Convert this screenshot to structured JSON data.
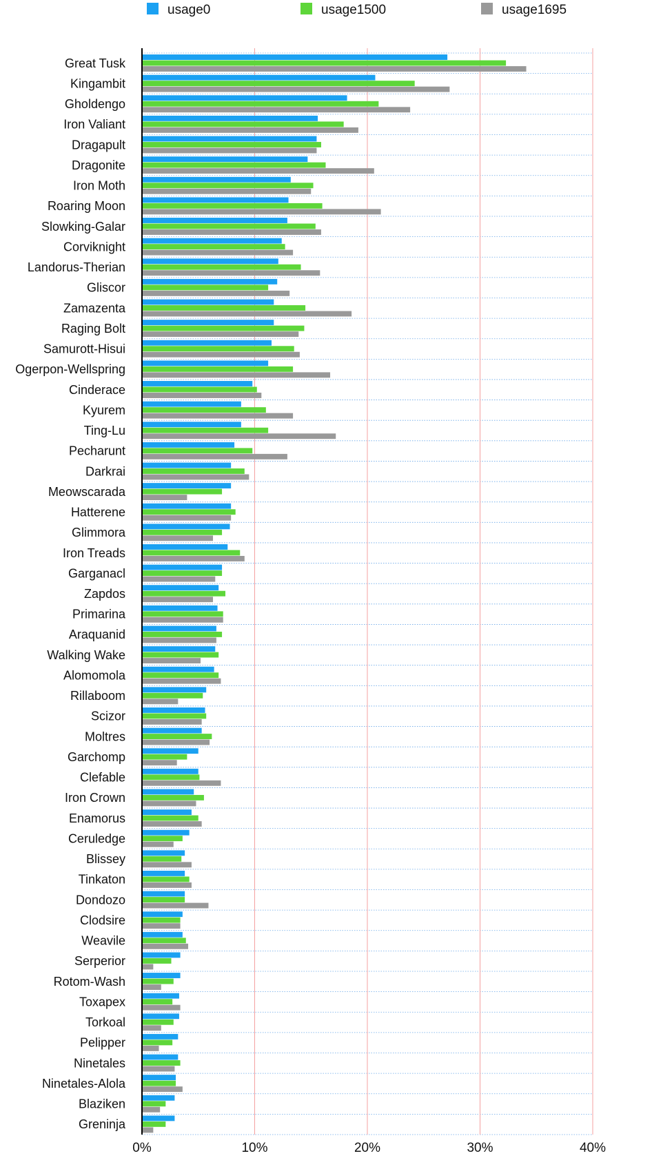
{
  "chart_data": {
    "type": "bar",
    "orientation": "horizontal",
    "title": "",
    "xlabel": "",
    "ylabel": "",
    "xlim": [
      0,
      40
    ],
    "x_ticks": [
      0,
      10,
      20,
      30,
      40
    ],
    "x_tick_labels": [
      "0%",
      "10%",
      "20%",
      "30%",
      "40%"
    ],
    "grid": true,
    "legend_position": "top",
    "colors": [
      "#1ba1f2",
      "#5ed63a",
      "#999999"
    ],
    "categories": [
      "Great Tusk",
      "Kingambit",
      "Gholdengo",
      "Iron Valiant",
      "Dragapult",
      "Dragonite",
      "Iron Moth",
      "Roaring Moon",
      "Slowking-Galar",
      "Corviknight",
      "Landorus-Therian",
      "Gliscor",
      "Zamazenta",
      "Raging Bolt",
      "Samurott-Hisui",
      "Ogerpon-Wellspring",
      "Cinderace",
      "Kyurem",
      "Ting-Lu",
      "Pecharunt",
      "Darkrai",
      "Meowscarada",
      "Hatterene",
      "Glimmora",
      "Iron Treads",
      "Garganacl",
      "Zapdos",
      "Primarina",
      "Araquanid",
      "Walking Wake",
      "Alomomola",
      "Rillaboom",
      "Scizor",
      "Moltres",
      "Garchomp",
      "Clefable",
      "Iron Crown",
      "Enamorus",
      "Ceruledge",
      "Blissey",
      "Tinkaton",
      "Dondozo",
      "Clodsire",
      "Weavile",
      "Serperior",
      "Rotom-Wash",
      "Toxapex",
      "Torkoal",
      "Pelipper",
      "Ninetales",
      "Ninetales-Alola",
      "Blaziken",
      "Greninja"
    ],
    "series": [
      {
        "name": "usage0",
        "values": [
          27.1,
          20.7,
          18.2,
          15.6,
          15.5,
          14.7,
          13.2,
          13.0,
          12.9,
          12.4,
          12.1,
          12.0,
          11.7,
          11.7,
          11.5,
          11.2,
          9.8,
          8.8,
          8.8,
          8.2,
          7.9,
          7.9,
          7.9,
          7.8,
          7.6,
          7.1,
          6.8,
          6.7,
          6.6,
          6.5,
          6.4,
          5.7,
          5.6,
          5.3,
          5.0,
          5.0,
          4.6,
          4.4,
          4.2,
          3.8,
          3.8,
          3.8,
          3.6,
          3.6,
          3.4,
          3.4,
          3.3,
          3.3,
          3.2,
          3.2,
          3.0,
          2.9,
          2.9
        ]
      },
      {
        "name": "usage1500",
        "values": [
          32.3,
          24.2,
          21.0,
          17.9,
          15.9,
          16.3,
          15.2,
          16.0,
          15.4,
          12.7,
          14.1,
          11.2,
          14.5,
          14.4,
          13.5,
          13.4,
          10.2,
          11.0,
          11.2,
          9.8,
          9.1,
          7.1,
          8.3,
          7.1,
          8.7,
          7.1,
          7.4,
          7.2,
          7.1,
          6.8,
          6.8,
          5.4,
          5.7,
          6.2,
          4.0,
          5.1,
          5.5,
          5.0,
          3.6,
          3.5,
          4.2,
          3.8,
          3.4,
          3.9,
          2.6,
          2.8,
          2.7,
          2.8,
          2.7,
          3.4,
          3.0,
          2.1,
          2.1
        ]
      },
      {
        "name": "usage1695",
        "values": [
          34.1,
          27.3,
          23.8,
          19.2,
          15.5,
          20.6,
          15.0,
          21.2,
          15.9,
          13.4,
          15.8,
          13.1,
          18.6,
          13.9,
          14.0,
          16.7,
          10.6,
          13.4,
          17.2,
          12.9,
          9.5,
          4.0,
          7.9,
          6.3,
          9.1,
          6.5,
          6.3,
          7.2,
          6.6,
          5.2,
          7.0,
          3.2,
          5.3,
          6.0,
          3.1,
          7.0,
          4.8,
          5.3,
          2.8,
          4.4,
          4.4,
          5.9,
          3.4,
          4.1,
          1.0,
          1.7,
          3.4,
          1.7,
          1.5,
          2.9,
          3.6,
          1.6,
          1.0
        ]
      }
    ]
  }
}
